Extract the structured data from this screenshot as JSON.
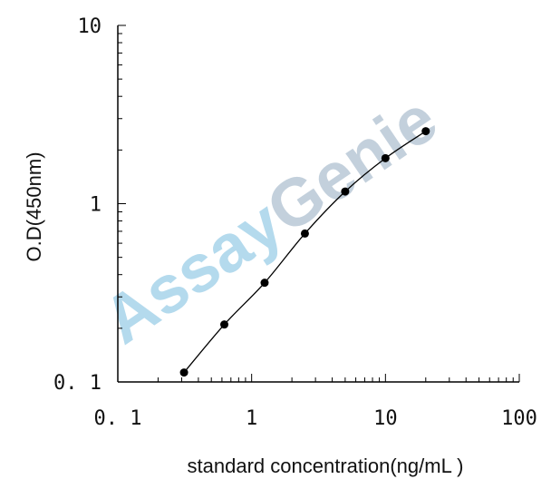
{
  "chart_data": {
    "type": "scatter",
    "title": "",
    "xlabel": "standard concentration(ng/mL )",
    "ylabel": "O.D(450nm)",
    "x_scale": "log",
    "y_scale": "log",
    "xlim": [
      0.1,
      100
    ],
    "ylim": [
      0.1,
      10
    ],
    "x_ticks": [
      0.1,
      1,
      10,
      100
    ],
    "x_tick_labels": [
      "0. 1",
      "1",
      "10",
      "100"
    ],
    "y_ticks": [
      0.1,
      1,
      10
    ],
    "y_tick_labels": [
      "0. 1",
      "1",
      "10"
    ],
    "grid": false,
    "legend": "none",
    "series": [
      {
        "x": [
          0.3125,
          0.625,
          1.25,
          2.5,
          5,
          10,
          20
        ],
        "y": [
          0.113,
          0.21,
          0.36,
          0.68,
          1.17,
          1.8,
          2.55
        ],
        "marker": "circle",
        "line": "smooth"
      }
    ],
    "colors": {
      "line": "#000000",
      "marker": "#000000",
      "watermark_light": "#a8d4ea",
      "watermark_dark": "#b9c8d6"
    }
  },
  "watermark": {
    "part1": "Assay",
    "part2": "Genie"
  }
}
